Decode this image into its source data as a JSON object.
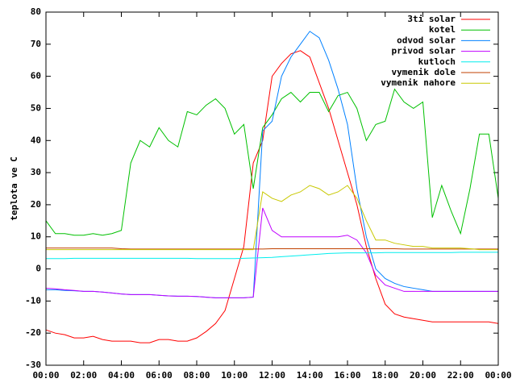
{
  "chart_data": {
    "type": "line",
    "y_label": "teplota ve C",
    "x": [
      0,
      0.5,
      1,
      1.5,
      2,
      2.5,
      3,
      3.5,
      4,
      4.5,
      5,
      5.5,
      6,
      6.5,
      7,
      7.5,
      8,
      8.5,
      9,
      9.5,
      10,
      10.5,
      11,
      11.5,
      12,
      12.5,
      13,
      13.5,
      14,
      14.5,
      15,
      15.5,
      16,
      16.5,
      17,
      17.5,
      18,
      18.5,
      19,
      19.5,
      20,
      20.5,
      21,
      21.5,
      22,
      22.5,
      23,
      23.5,
      24
    ],
    "xlim": [
      0,
      24
    ],
    "xticks": [
      {
        "value": 0,
        "label": "00:00"
      },
      {
        "value": 2,
        "label": "02:00"
      },
      {
        "value": 4,
        "label": "04:00"
      },
      {
        "value": 6,
        "label": "06:00"
      },
      {
        "value": 8,
        "label": "08:00"
      },
      {
        "value": 10,
        "label": "10:00"
      },
      {
        "value": 12,
        "label": "12:00"
      },
      {
        "value": 14,
        "label": "14:00"
      },
      {
        "value": 16,
        "label": "16:00"
      },
      {
        "value": 18,
        "label": "18:00"
      },
      {
        "value": 20,
        "label": "20:00"
      },
      {
        "value": 22,
        "label": "22:00"
      },
      {
        "value": 24,
        "label": "00:00"
      }
    ],
    "ylim": [
      -30,
      80
    ],
    "yticks": [
      -30,
      -20,
      -10,
      0,
      10,
      20,
      30,
      40,
      50,
      60,
      70,
      80
    ],
    "grid": false,
    "legend": "top-right",
    "series": [
      {
        "name": "3ti solar",
        "color": "#ff0000",
        "values": [
          -19,
          -20,
          -20.5,
          -21.5,
          -21.5,
          -21,
          -22,
          -22.5,
          -22.5,
          -22.5,
          -23,
          -23,
          -22,
          -22,
          -22.5,
          -22.5,
          -21.5,
          -19.5,
          -17,
          -13,
          -3,
          7,
          33,
          40,
          60,
          64,
          67,
          68,
          66,
          58,
          50,
          40,
          30,
          20,
          7,
          -3,
          -11,
          -14,
          -15,
          -15.5,
          -16,
          -16.5,
          -16.5,
          -16.5,
          -16.5,
          -16.5,
          -16.5,
          -16.5,
          -17
        ]
      },
      {
        "name": "kotel",
        "color": "#00c000",
        "values": [
          15,
          11,
          11,
          10.5,
          10.5,
          11,
          10.5,
          11,
          12,
          33,
          40,
          38,
          44,
          40,
          38,
          49,
          48,
          51,
          53,
          50,
          42,
          45,
          25,
          44,
          48,
          53,
          55,
          52,
          55,
          55,
          49,
          54,
          55,
          50,
          40,
          45,
          46,
          56,
          52,
          50,
          52,
          16,
          26,
          18,
          11,
          25,
          42,
          42,
          22
        ]
      },
      {
        "name": "odvod solar",
        "color": "#0080ff",
        "values": [
          -6.5,
          -6.5,
          -6.7,
          -6.8,
          -7,
          -7,
          -7.2,
          -7.5,
          -7.8,
          -8,
          -8,
          -8,
          -8.2,
          -8.4,
          -8.5,
          -8.5,
          -8.6,
          -8.8,
          -9,
          -9,
          -9,
          -9,
          -8.8,
          43,
          46,
          60,
          66,
          70,
          74,
          72,
          65,
          56,
          45,
          25,
          10,
          0,
          -3,
          -4.5,
          -5.5,
          -6,
          -6.5,
          -7,
          -7,
          -7,
          -7,
          -7,
          -7,
          -7,
          -7
        ]
      },
      {
        "name": "privod solar",
        "color": "#c000ff",
        "values": [
          -6,
          -6.2,
          -6.5,
          -6.7,
          -7,
          -7,
          -7.2,
          -7.5,
          -7.8,
          -8,
          -8,
          -8,
          -8.2,
          -8.4,
          -8.5,
          -8.5,
          -8.6,
          -8.8,
          -9,
          -9,
          -9,
          -9,
          -8.8,
          19,
          12,
          10,
          10,
          10,
          10,
          10,
          10,
          10,
          10.5,
          9,
          5,
          -2,
          -5,
          -6,
          -7,
          -7,
          -7,
          -7,
          -7,
          -7,
          -7,
          -7,
          -7,
          -7,
          -7
        ]
      },
      {
        "name": "kutloch",
        "color": "#00eeee",
        "values": [
          3.2,
          3.2,
          3.2,
          3.3,
          3.3,
          3.3,
          3.3,
          3.3,
          3.3,
          3.3,
          3.3,
          3.3,
          3.3,
          3.3,
          3.3,
          3.3,
          3.2,
          3.2,
          3.2,
          3.2,
          3.2,
          3.3,
          3.4,
          3.5,
          3.6,
          3.8,
          4,
          4.2,
          4.4,
          4.6,
          4.8,
          4.9,
          5,
          5,
          5,
          5,
          5.1,
          5.1,
          5.1,
          5.1,
          5.1,
          5.1,
          5.1,
          5.1,
          5.2,
          5.2,
          5.2,
          5.2,
          5.2
        ]
      },
      {
        "name": "vymenik dole",
        "color": "#c04000",
        "values": [
          6.5,
          6.5,
          6.5,
          6.5,
          6.5,
          6.5,
          6.5,
          6.5,
          6.3,
          6.2,
          6.2,
          6.2,
          6.2,
          6.2,
          6.2,
          6.2,
          6.2,
          6.2,
          6.2,
          6.2,
          6.2,
          6.2,
          6.2,
          6.2,
          6.3,
          6.3,
          6.3,
          6.3,
          6.3,
          6.3,
          6.3,
          6.3,
          6.3,
          6.3,
          6.3,
          6.3,
          6.3,
          6.3,
          6.2,
          6.2,
          6.2,
          6.2,
          6.2,
          6.2,
          6.2,
          6.2,
          6.2,
          6.2,
          6.2
        ]
      },
      {
        "name": "vymenik nahore",
        "color": "#c8c800",
        "values": [
          6,
          6,
          6,
          6,
          6,
          6,
          6,
          6,
          6,
          6,
          6,
          6,
          6,
          6,
          6,
          6,
          6,
          6,
          6,
          6,
          6,
          6,
          6,
          24,
          22,
          21,
          23,
          24,
          26,
          25,
          23,
          24,
          26,
          22,
          15,
          9,
          9,
          8,
          7.5,
          7,
          7,
          6.5,
          6.5,
          6.5,
          6.5,
          6.3,
          6,
          6,
          6
        ]
      }
    ]
  }
}
